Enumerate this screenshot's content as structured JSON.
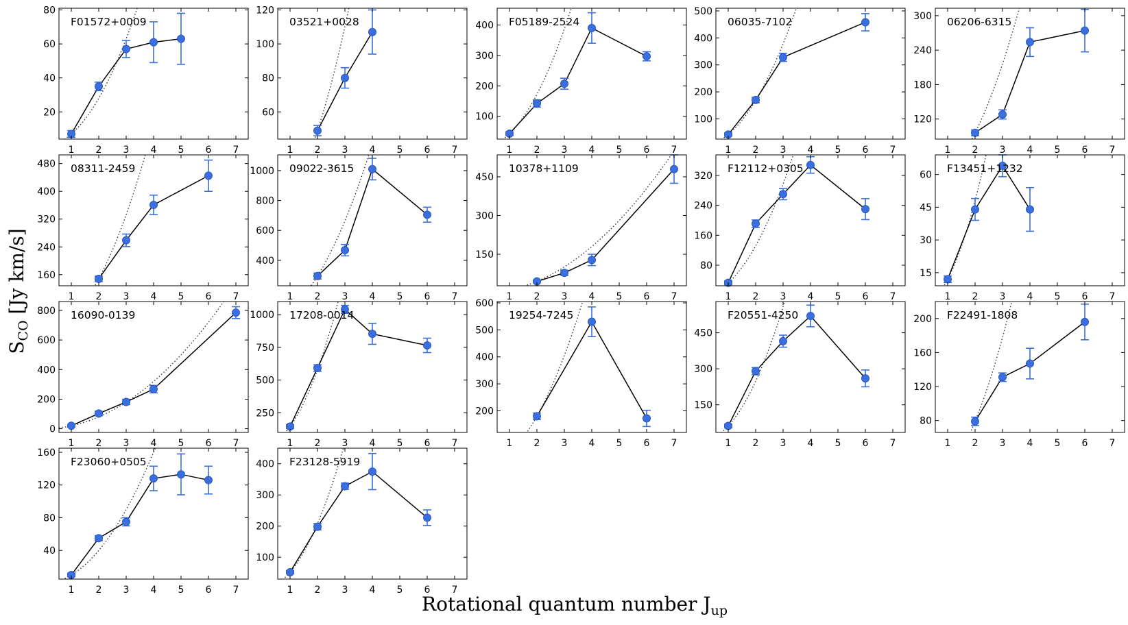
{
  "figure": {
    "ylabel_main": "S",
    "ylabel_sub": "CO",
    "ylabel_unit": " [Jy km/s]",
    "xlabel_main": "Rotational quantum number J",
    "xlabel_sub": "up"
  },
  "colors": {
    "marker": "#3a6fdd",
    "marker_edge": "#2c58c0",
    "errorbar": "#3a6fdd",
    "line": "#000000",
    "dotted": "#333333"
  },
  "chart_data": [
    {
      "type": "line",
      "title": "F01572+0009",
      "x": [
        1,
        2,
        3,
        4,
        5
      ],
      "y": [
        7,
        35,
        57,
        61,
        63
      ],
      "yerr": [
        2,
        2.5,
        5,
        12,
        15
      ],
      "xlim": [
        0.55,
        7.45
      ],
      "ylim": [
        4,
        81
      ],
      "yticks": [
        20,
        40,
        60,
        80
      ],
      "xticks": [
        1,
        2,
        3,
        4,
        5,
        6,
        7
      ],
      "dotted_model": "LTE J^2 scaling"
    },
    {
      "type": "line",
      "title": "03521+0028",
      "x": [
        2,
        3,
        4
      ],
      "y": [
        49,
        80,
        107
      ],
      "yerr": [
        3,
        6,
        13
      ],
      "xlim": [
        0.55,
        7.45
      ],
      "ylim": [
        44,
        121
      ],
      "yticks": [
        60,
        80,
        100,
        120
      ],
      "xticks": [
        1,
        2,
        3,
        4,
        5,
        6,
        7
      ],
      "dotted_model": "LTE J^2 scaling"
    },
    {
      "type": "line",
      "title": "F05189-2524",
      "x": [
        1,
        2,
        3,
        4,
        6
      ],
      "y": [
        43,
        142,
        207,
        390,
        297
      ],
      "yerr": [
        6,
        12,
        18,
        50,
        15
      ],
      "xlim": [
        0.55,
        7.45
      ],
      "ylim": [
        25,
        455
      ],
      "yticks": [
        100,
        200,
        300,
        400
      ],
      "xticks": [
        1,
        2,
        3,
        4,
        5,
        6,
        7
      ],
      "dotted_model": "LTE J^2 scaling"
    },
    {
      "type": "line",
      "title": "06035-7102",
      "x": [
        1,
        2,
        3,
        6
      ],
      "y": [
        42,
        170,
        328,
        458
      ],
      "yerr": [
        6,
        10,
        15,
        32
      ],
      "xlim": [
        0.55,
        7.45
      ],
      "ylim": [
        25,
        510
      ],
      "yticks": [
        100,
        200,
        300,
        400,
        500
      ],
      "xticks": [
        1,
        2,
        3,
        4,
        5,
        6,
        7
      ],
      "dotted_model": "LTE J^2 scaling"
    },
    {
      "type": "line",
      "title": "06206-6315",
      "x": [
        2,
        3,
        4,
        6
      ],
      "y": [
        96,
        128,
        254,
        274
      ],
      "yerr": [
        5,
        8,
        25,
        37
      ],
      "xlim": [
        0.55,
        7.45
      ],
      "ylim": [
        85,
        313
      ],
      "yticks": [
        120,
        180,
        240,
        300
      ],
      "xticks": [
        1,
        2,
        3,
        4,
        5,
        6,
        7
      ],
      "dotted_model": "LTE J^2 scaling"
    },
    {
      "type": "line",
      "title": "08311-2459",
      "x": [
        2,
        3,
        4,
        6
      ],
      "y": [
        148,
        259,
        361,
        445
      ],
      "yerr": [
        8,
        18,
        28,
        45
      ],
      "xlim": [
        0.55,
        7.45
      ],
      "ylim": [
        128,
        505
      ],
      "yticks": [
        160,
        240,
        320,
        400,
        480
      ],
      "xticks": [
        1,
        2,
        3,
        4,
        5,
        6,
        7
      ],
      "dotted_model": "LTE J^2 scaling"
    },
    {
      "type": "line",
      "title": "09022-3615",
      "x": [
        2,
        3,
        4,
        6
      ],
      "y": [
        295,
        468,
        1010,
        705
      ],
      "yerr": [
        20,
        38,
        72,
        50
      ],
      "xlim": [
        0.55,
        7.45
      ],
      "ylim": [
        230,
        1105
      ],
      "yticks": [
        400,
        600,
        800,
        1000
      ],
      "xticks": [
        1,
        2,
        3,
        4,
        5,
        6,
        7
      ],
      "dotted_model": "LTE J^2 scaling"
    },
    {
      "type": "line",
      "title": "10378+1109",
      "x": [
        2,
        3,
        4,
        7
      ],
      "y": [
        45,
        78,
        128,
        480
      ],
      "yerr": [
        5,
        10,
        22,
        55
      ],
      "xlim": [
        0.55,
        7.45
      ],
      "ylim": [
        28,
        535
      ],
      "yticks": [
        150,
        300,
        450
      ],
      "xticks": [
        1,
        2,
        3,
        4,
        5,
        6,
        7
      ],
      "dotted_model": "LTE J^2 scaling"
    },
    {
      "type": "line",
      "title": "F12112+0305",
      "x": [
        1,
        2,
        3,
        4,
        6
      ],
      "y": [
        33,
        191,
        270,
        348,
        230
      ],
      "yerr": [
        5,
        10,
        15,
        22,
        28
      ],
      "xlim": [
        0.55,
        7.45
      ],
      "ylim": [
        25,
        375
      ],
      "yticks": [
        80,
        160,
        240,
        320
      ],
      "xticks": [
        1,
        2,
        3,
        4,
        5,
        6,
        7
      ],
      "dotted_model": "LTE J^2 scaling"
    },
    {
      "type": "line",
      "title": "F13451+1232",
      "x": [
        1,
        2,
        3,
        4
      ],
      "y": [
        12,
        44,
        64,
        44
      ],
      "yerr": [
        1.5,
        5,
        5,
        10
      ],
      "xlim": [
        0.55,
        7.45
      ],
      "ylim": [
        9,
        69
      ],
      "yticks": [
        15,
        30,
        45,
        60
      ],
      "xticks": [
        1,
        2,
        3,
        4,
        5,
        6,
        7
      ],
      "dotted_model": "LTE J^2 scaling"
    },
    {
      "type": "line",
      "title": "16090-0139",
      "x": [
        1,
        2,
        3,
        4,
        7
      ],
      "y": [
        20,
        103,
        181,
        268,
        785
      ],
      "yerr": [
        8,
        15,
        18,
        25,
        40
      ],
      "xlim": [
        0.55,
        7.45
      ],
      "ylim": [
        -25,
        860
      ],
      "yticks": [
        0,
        200,
        400,
        600,
        800
      ],
      "xticks": [
        1,
        2,
        3,
        4,
        5,
        6,
        7
      ],
      "dotted_model": "LTE J^2 scaling"
    },
    {
      "type": "line",
      "title": "17208-0014",
      "x": [
        1,
        2,
        3,
        4,
        6
      ],
      "y": [
        145,
        592,
        1040,
        853,
        765
      ],
      "yerr": [
        15,
        25,
        30,
        80,
        55
      ],
      "xlim": [
        0.55,
        7.45
      ],
      "ylim": [
        100,
        1100
      ],
      "yticks": [
        250,
        500,
        750,
        1000
      ],
      "xticks": [
        1,
        2,
        3,
        4,
        5,
        6,
        7
      ],
      "dotted_model": "LTE J^2 scaling"
    },
    {
      "type": "line",
      "title": "19254-7245",
      "x": [
        2,
        4,
        6
      ],
      "y": [
        180,
        530,
        172
      ],
      "yerr": [
        12,
        55,
        30
      ],
      "xlim": [
        0.55,
        7.45
      ],
      "ylim": [
        120,
        605
      ],
      "yticks": [
        200,
        300,
        400,
        500,
        600
      ],
      "xticks": [
        1,
        2,
        3,
        4,
        5,
        6,
        7
      ],
      "dotted_model": "LTE J^2 scaling"
    },
    {
      "type": "line",
      "title": "F20551-4250",
      "x": [
        1,
        2,
        3,
        4,
        6
      ],
      "y": [
        62,
        290,
        415,
        520,
        260
      ],
      "yerr": [
        8,
        15,
        25,
        45,
        35
      ],
      "xlim": [
        0.55,
        7.45
      ],
      "ylim": [
        35,
        580
      ],
      "yticks": [
        150,
        300,
        450
      ],
      "xticks": [
        1,
        2,
        3,
        4,
        5,
        6,
        7
      ],
      "dotted_model": "LTE J^2 scaling"
    },
    {
      "type": "line",
      "title": "F22491-1808",
      "x": [
        2,
        3,
        4,
        6
      ],
      "y": [
        79,
        131,
        147,
        196
      ],
      "yerr": [
        5,
        5,
        18,
        21
      ],
      "xlim": [
        0.55,
        7.45
      ],
      "ylim": [
        66,
        220
      ],
      "yticks": [
        80,
        120,
        160,
        200
      ],
      "xticks": [
        1,
        2,
        3,
        4,
        5,
        6,
        7
      ],
      "dotted_model": "LTE J^2 scaling"
    },
    {
      "type": "line",
      "title": "F23060+0505",
      "x": [
        1,
        2,
        3,
        4,
        5,
        6
      ],
      "y": [
        10,
        55,
        75,
        128,
        133,
        126
      ],
      "yerr": [
        2,
        3,
        5,
        15,
        25,
        17
      ],
      "xlim": [
        0.55,
        7.45
      ],
      "ylim": [
        5,
        165
      ],
      "yticks": [
        40,
        80,
        120,
        160
      ],
      "xticks": [
        1,
        2,
        3,
        4,
        5,
        6,
        7
      ],
      "dotted_model": "LTE J^2 scaling"
    },
    {
      "type": "line",
      "title": "F23128-5919",
      "x": [
        1,
        2,
        3,
        4,
        6
      ],
      "y": [
        52,
        198,
        328,
        375,
        227
      ],
      "yerr": [
        5,
        10,
        10,
        58,
        25
      ],
      "xlim": [
        0.55,
        7.45
      ],
      "ylim": [
        30,
        450
      ],
      "yticks": [
        100,
        200,
        300,
        400
      ],
      "xticks": [
        1,
        2,
        3,
        4,
        5,
        6,
        7
      ],
      "dotted_model": "LTE J^2 scaling"
    }
  ]
}
